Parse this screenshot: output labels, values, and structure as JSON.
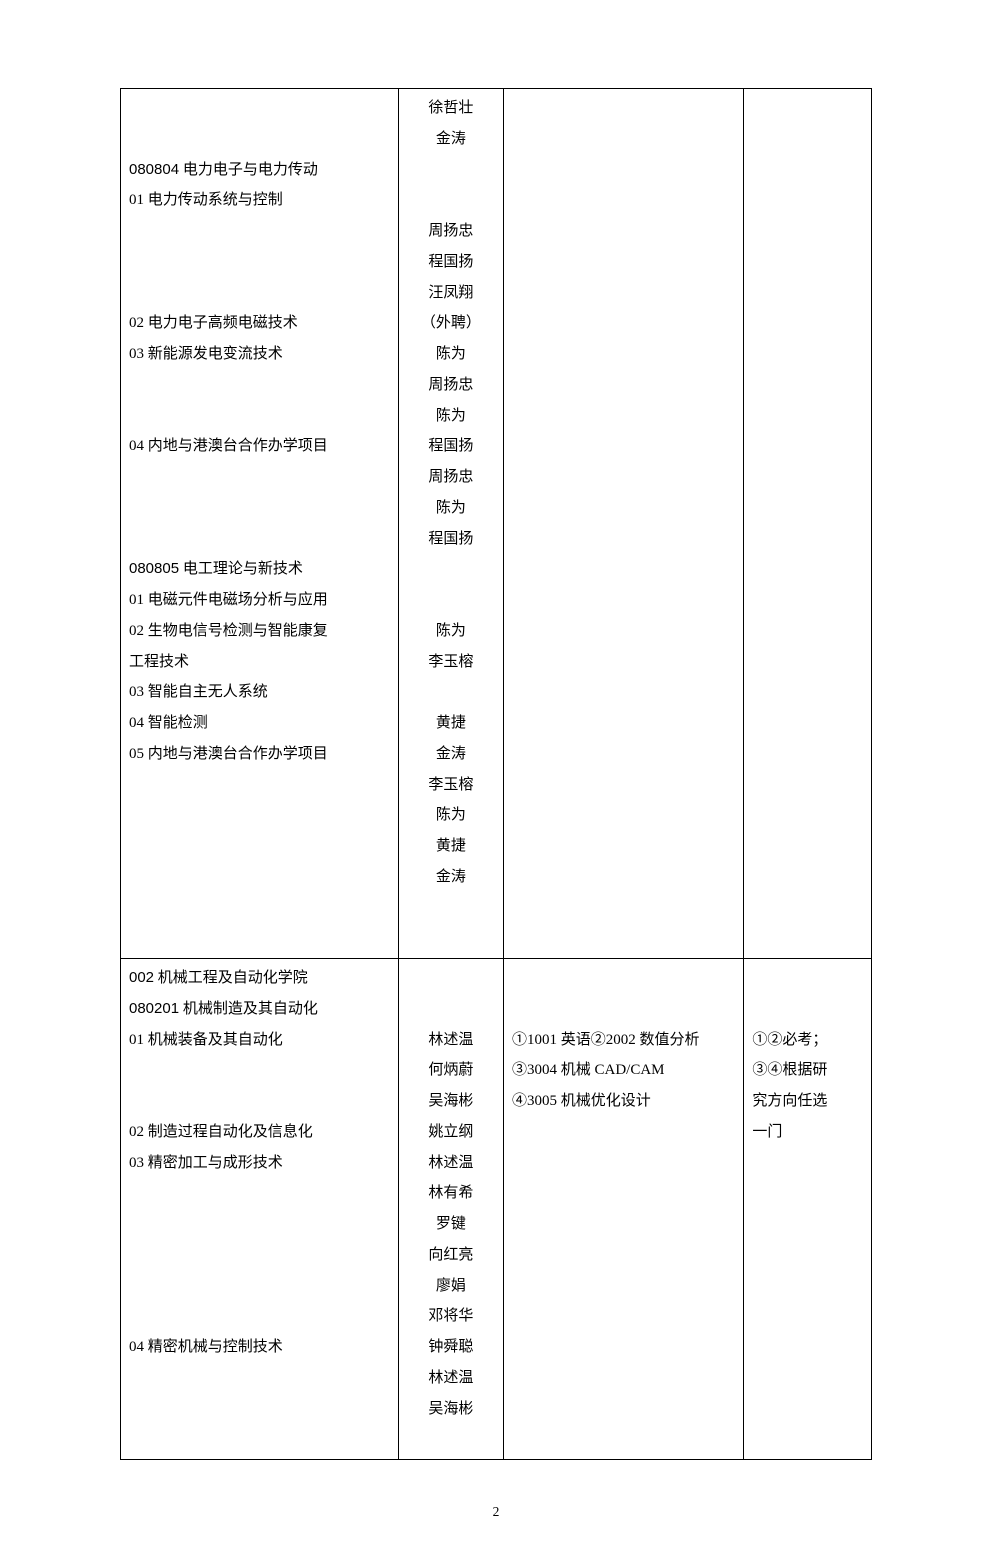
{
  "row1": {
    "col1_lines": [
      {
        "text": "",
        "bold": false
      },
      {
        "text": "",
        "bold": false
      },
      {
        "text": "080804 电力电子与电力传动",
        "bold": true,
        "boldPrefix": "080804"
      },
      {
        "text": "01 电力传动系统与控制",
        "bold": false
      },
      {
        "text": "",
        "bold": false
      },
      {
        "text": "",
        "bold": false
      },
      {
        "text": "",
        "bold": false
      },
      {
        "text": "02 电力电子高频电磁技术",
        "bold": false
      },
      {
        "text": "03 新能源发电变流技术",
        "bold": false
      },
      {
        "text": "",
        "bold": false
      },
      {
        "text": "",
        "bold": false
      },
      {
        "text": "04 内地与港澳台合作办学项目",
        "bold": false
      },
      {
        "text": "",
        "bold": false
      },
      {
        "text": "",
        "bold": false
      },
      {
        "text": "",
        "bold": false
      },
      {
        "text": "080805 电工理论与新技术",
        "bold": true,
        "boldPrefix": "080805"
      },
      {
        "text": "01 电磁元件电磁场分析与应用",
        "bold": false
      },
      {
        "text": "02 生物电信号检测与智能康复",
        "bold": false
      },
      {
        "text": "工程技术",
        "bold": false
      },
      {
        "text": "03 智能自主无人系统",
        "bold": false
      },
      {
        "text": "04 智能检测",
        "bold": false
      },
      {
        "text": "05 内地与港澳台合作办学项目",
        "bold": false
      },
      {
        "text": "",
        "bold": false
      },
      {
        "text": "",
        "bold": false
      },
      {
        "text": "",
        "bold": false
      },
      {
        "text": "",
        "bold": false
      },
      {
        "text": "",
        "bold": false
      }
    ],
    "col2_lines": [
      "徐哲壮",
      "金涛",
      "",
      "",
      "周扬忠",
      "程国扬",
      "汪凤翔",
      "（外聘）",
      "陈为",
      "周扬忠",
      "陈为",
      "程国扬",
      "周扬忠",
      "陈为",
      "程国扬",
      "",
      "",
      "陈为",
      "李玉榕",
      "",
      "黄捷",
      "金涛",
      "李玉榕",
      "陈为",
      "黄捷",
      "金涛",
      "",
      ""
    ],
    "col3_lines": [],
    "col4_lines": []
  },
  "row2": {
    "col1_lines": [
      {
        "text": "002 机械工程及自动化学院",
        "bold": true,
        "boldPrefix": "002"
      },
      {
        "text": "080201 机械制造及其自动化",
        "bold": true,
        "boldPrefix": "080201"
      },
      {
        "text": "01 机械装备及其自动化",
        "bold": false
      },
      {
        "text": "",
        "bold": false
      },
      {
        "text": "",
        "bold": false
      },
      {
        "text": "02 制造过程自动化及信息化",
        "bold": false
      },
      {
        "text": "03 精密加工与成形技术",
        "bold": false
      },
      {
        "text": "",
        "bold": false
      },
      {
        "text": "",
        "bold": false
      },
      {
        "text": "",
        "bold": false
      },
      {
        "text": "",
        "bold": false
      },
      {
        "text": "",
        "bold": false
      },
      {
        "text": "04 精密机械与控制技术",
        "bold": false
      },
      {
        "text": "",
        "bold": false
      },
      {
        "text": "",
        "bold": false
      },
      {
        "text": "",
        "bold": false
      }
    ],
    "col2_lines": [
      "",
      "",
      "林述温",
      "何炳蔚",
      "吴海彬",
      "姚立纲",
      "林述温",
      "林有希",
      "罗键",
      "向红亮",
      "廖娟",
      "邓将华",
      "钟舜聪",
      "林述温",
      "吴海彬",
      ""
    ],
    "col3_lines": [
      "",
      "",
      "①1001 英语②2002 数值分析",
      "③3004 机械 CAD/CAM",
      "④3005 机械优化设计",
      "",
      "",
      "",
      "",
      "",
      "",
      "",
      "",
      "",
      "",
      ""
    ],
    "col4_lines": [
      "",
      "",
      "①②必考；",
      "③④根据研",
      "究方向任选",
      "一门",
      "",
      "",
      "",
      "",
      "",
      "",
      "",
      "",
      "",
      ""
    ]
  },
  "footer": "2"
}
